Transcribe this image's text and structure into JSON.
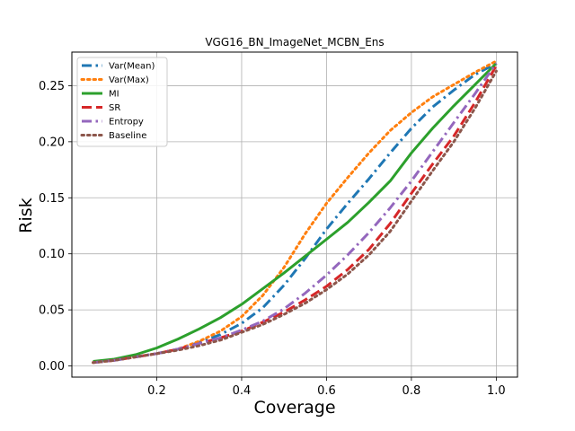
{
  "chart_data": {
    "type": "line",
    "title": "VGG16_BN_ImageNet_MCBN_Ens",
    "xlabel": "Coverage",
    "ylabel": "Risk",
    "xlim": [
      0.0,
      1.05
    ],
    "ylim": [
      -0.01,
      0.28
    ],
    "xticks": [
      0.2,
      0.4,
      0.6,
      0.8,
      1.0
    ],
    "xtick_labels": [
      "0.2",
      "0.4",
      "0.6",
      "0.8",
      "1.0"
    ],
    "yticks": [
      0.0,
      0.05,
      0.1,
      0.15,
      0.2,
      0.25
    ],
    "ytick_labels": [
      "0.00",
      "0.05",
      "0.10",
      "0.15",
      "0.20",
      "0.25"
    ],
    "grid": true,
    "legend_position": "top-left",
    "x": [
      0.05,
      0.1,
      0.15,
      0.2,
      0.25,
      0.3,
      0.35,
      0.4,
      0.45,
      0.5,
      0.55,
      0.6,
      0.65,
      0.7,
      0.75,
      0.8,
      0.85,
      0.9,
      0.95,
      1.0
    ],
    "series": [
      {
        "name": "Var(Mean)",
        "color": "#1f77b4",
        "dash": "dashdot",
        "values": [
          0.003,
          0.005,
          0.008,
          0.011,
          0.015,
          0.021,
          0.028,
          0.038,
          0.052,
          0.072,
          0.096,
          0.122,
          0.145,
          0.167,
          0.19,
          0.212,
          0.231,
          0.246,
          0.26,
          0.27
        ]
      },
      {
        "name": "Var(Max)",
        "color": "#ff7f0e",
        "dash": "dotted",
        "values": [
          0.003,
          0.005,
          0.008,
          0.011,
          0.015,
          0.022,
          0.031,
          0.044,
          0.063,
          0.088,
          0.118,
          0.145,
          0.168,
          0.19,
          0.21,
          0.226,
          0.24,
          0.251,
          0.262,
          0.272
        ]
      },
      {
        "name": "MI",
        "color": "#2ca02c",
        "dash": "solid",
        "values": [
          0.004,
          0.006,
          0.01,
          0.016,
          0.024,
          0.033,
          0.043,
          0.055,
          0.069,
          0.083,
          0.098,
          0.113,
          0.128,
          0.146,
          0.165,
          0.19,
          0.212,
          0.232,
          0.251,
          0.27
        ]
      },
      {
        "name": "SR",
        "color": "#d62728",
        "dash": "dashed",
        "values": [
          0.003,
          0.005,
          0.008,
          0.011,
          0.015,
          0.02,
          0.025,
          0.031,
          0.039,
          0.048,
          0.059,
          0.071,
          0.086,
          0.104,
          0.127,
          0.154,
          0.18,
          0.205,
          0.235,
          0.268
        ]
      },
      {
        "name": "Entropy",
        "color": "#9467bd",
        "dash": "dashdot",
        "values": [
          0.003,
          0.005,
          0.008,
          0.011,
          0.015,
          0.02,
          0.025,
          0.032,
          0.04,
          0.051,
          0.065,
          0.081,
          0.099,
          0.119,
          0.141,
          0.165,
          0.191,
          0.217,
          0.243,
          0.27
        ]
      },
      {
        "name": "Baseline",
        "color": "#8c564b",
        "dash": "dotted",
        "values": [
          0.003,
          0.005,
          0.008,
          0.011,
          0.014,
          0.018,
          0.023,
          0.03,
          0.037,
          0.046,
          0.056,
          0.068,
          0.082,
          0.099,
          0.12,
          0.147,
          0.174,
          0.2,
          0.23,
          0.263
        ]
      }
    ]
  }
}
